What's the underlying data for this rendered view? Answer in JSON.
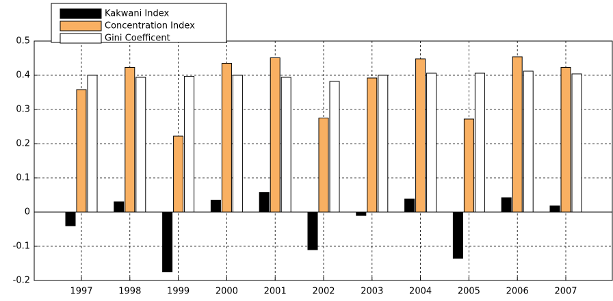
{
  "chart_data": {
    "type": "bar",
    "categories": [
      "1997",
      "1998",
      "1999",
      "2000",
      "2001",
      "2002",
      "2003",
      "2004",
      "2005",
      "2006",
      "2007"
    ],
    "series": [
      {
        "name": "Kakwani Index",
        "color": "#000000",
        "values": [
          -0.04,
          0.03,
          -0.175,
          0.035,
          0.057,
          -0.11,
          -0.01,
          0.038,
          -0.135,
          0.042,
          0.018
        ]
      },
      {
        "name": "Concentration Index",
        "color": "#f9b062",
        "values": [
          0.358,
          0.423,
          0.222,
          0.435,
          0.451,
          0.275,
          0.392,
          0.448,
          0.272,
          0.454,
          0.423
        ]
      },
      {
        "name": "Gini Coefficent",
        "color": "#ffffff",
        "values": [
          0.4,
          0.394,
          0.397,
          0.4,
          0.394,
          0.382,
          0.4,
          0.406,
          0.406,
          0.412,
          0.404
        ]
      }
    ],
    "ylim": [
      -0.2,
      0.5
    ],
    "yticks": [
      -0.2,
      -0.1,
      0,
      0.1,
      0.2,
      0.3,
      0.4,
      0.5
    ],
    "grid": true,
    "legend": "upper left"
  }
}
